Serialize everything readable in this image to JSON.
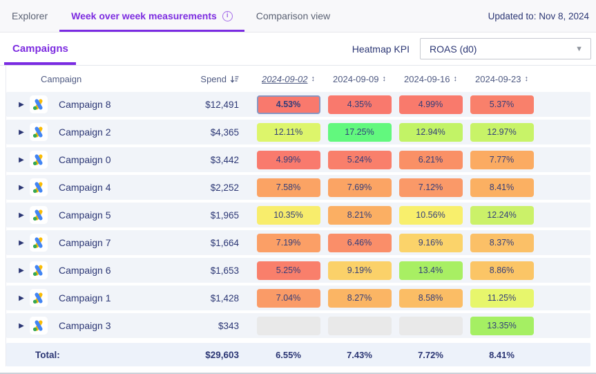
{
  "tabbar": {
    "tabs": [
      {
        "label": "Explorer",
        "active": false
      },
      {
        "label": "Week over week measurements",
        "active": true
      },
      {
        "label": "Comparison view",
        "active": false
      }
    ],
    "info_icon": "i",
    "updated_text": "Updated to: Nov 8, 2024"
  },
  "subbar": {
    "section_tab": "Campaigns",
    "kpi_label": "Heatmap KPI",
    "kpi_value": "ROAS (d0)"
  },
  "colors": {
    "accent_purple": "#7a2be2",
    "navy_text": "#2b3674",
    "selected_cell_border": "#8795c0",
    "empty_cell": "#e9e9e9",
    "row_bg": "#f1f4f9",
    "total_row_bg": "#edf2fa"
  },
  "table": {
    "headers": {
      "campaign": "Campaign",
      "spend": "Spend",
      "dates": [
        "2024-09-02",
        "2024-09-09",
        "2024-09-16",
        "2024-09-23"
      ],
      "sorted_date_index": 0
    },
    "rows": [
      {
        "name": "Campaign 8",
        "spend": "$12,491",
        "cells": [
          {
            "value": "4.53%",
            "color": "#F9796D",
            "selected": true
          },
          {
            "value": "4.35%",
            "color": "#F9796D"
          },
          {
            "value": "4.99%",
            "color": "#F97A6C"
          },
          {
            "value": "5.37%",
            "color": "#F9806B"
          }
        ]
      },
      {
        "name": "Campaign 2",
        "spend": "$4,365",
        "cells": [
          {
            "value": "12.11%",
            "color": "#DDF56B"
          },
          {
            "value": "17.25%",
            "color": "#62F87E"
          },
          {
            "value": "12.94%",
            "color": "#C2F366"
          },
          {
            "value": "12.97%",
            "color": "#C8F368"
          }
        ]
      },
      {
        "name": "Campaign 0",
        "spend": "$3,442",
        "cells": [
          {
            "value": "4.99%",
            "color": "#F97A6D"
          },
          {
            "value": "5.24%",
            "color": "#F97F6B"
          },
          {
            "value": "6.21%",
            "color": "#FA9066"
          },
          {
            "value": "7.77%",
            "color": "#FBAB62"
          }
        ]
      },
      {
        "name": "Campaign 4",
        "spend": "$2,252",
        "cells": [
          {
            "value": "7.58%",
            "color": "#FBA364"
          },
          {
            "value": "7.69%",
            "color": "#FBA464"
          },
          {
            "value": "7.12%",
            "color": "#FA9968"
          },
          {
            "value": "8.41%",
            "color": "#FBB062"
          }
        ]
      },
      {
        "name": "Campaign 5",
        "spend": "$1,965",
        "cells": [
          {
            "value": "10.35%",
            "color": "#F8ED6C"
          },
          {
            "value": "8.21%",
            "color": "#FBAF63"
          },
          {
            "value": "10.56%",
            "color": "#F8EF6C"
          },
          {
            "value": "12.24%",
            "color": "#CBF169"
          }
        ]
      },
      {
        "name": "Campaign 7",
        "spend": "$1,664",
        "cells": [
          {
            "value": "7.19%",
            "color": "#FB9F66"
          },
          {
            "value": "6.46%",
            "color": "#FA8E69"
          },
          {
            "value": "9.16%",
            "color": "#FBD36A"
          },
          {
            "value": "8.37%",
            "color": "#FBC067"
          }
        ]
      },
      {
        "name": "Campaign 6",
        "spend": "$1,653",
        "cells": [
          {
            "value": "5.25%",
            "color": "#F97F6B"
          },
          {
            "value": "9.19%",
            "color": "#FBD169"
          },
          {
            "value": "13.4%",
            "color": "#A8EF63"
          },
          {
            "value": "8.86%",
            "color": "#FBC566"
          }
        ]
      },
      {
        "name": "Campaign 1",
        "spend": "$1,428",
        "cells": [
          {
            "value": "7.04%",
            "color": "#FA9B67"
          },
          {
            "value": "8.27%",
            "color": "#FBB564"
          },
          {
            "value": "8.58%",
            "color": "#FBBD65"
          },
          {
            "value": "11.25%",
            "color": "#E7F66C"
          }
        ]
      },
      {
        "name": "Campaign 3",
        "spend": "$343",
        "cells": [
          {
            "value": null,
            "color": "#E9E9E9"
          },
          {
            "value": null,
            "color": "#E9E9E9"
          },
          {
            "value": null,
            "color": "#E9E9E9"
          },
          {
            "value": "13.35%",
            "color": "#A5EF63"
          }
        ]
      }
    ],
    "total": {
      "label": "Total:",
      "spend": "$29,603",
      "values": [
        "6.55%",
        "7.43%",
        "7.72%",
        "8.41%"
      ]
    }
  }
}
